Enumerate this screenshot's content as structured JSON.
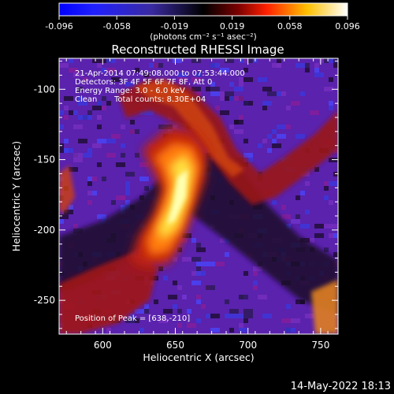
{
  "colorbar": {
    "tick_labels": [
      "-0.096",
      "-0.058",
      "-0.019",
      "0.019",
      "0.058",
      "0.096"
    ],
    "range": [
      -0.096,
      0.096
    ],
    "unit_label": "(photons cm⁻² s⁻¹ asec⁻²)"
  },
  "info": {
    "line1": "21-Apr-2014 07:49:08.000 to 07:53:44.000",
    "line2": "Detectors: 3F 4F 5F 6F 7F 8F, Att 0",
    "line3": "Energy Range: 3.0 - 6.0 keV",
    "line4_a": "Clean",
    "line4_b": "Total counts: 8.30E+04",
    "peak": "Position of Peak = [638,-210]"
  },
  "footer_date": "14-May-2022 18:13",
  "colors": {
    "background": "#000000",
    "image_base": "#6a28b8",
    "flare_core": "#ffff80"
  },
  "chart_data": {
    "type": "heatmap",
    "title": "Reconstructed RHESSI Image",
    "xlabel": "Heliocentric X (arcsec)",
    "ylabel": "Heliocentric Y (arcsec)",
    "xlim": [
      570,
      762
    ],
    "ylim": [
      -274,
      -78
    ],
    "xticks": [
      600,
      650,
      700,
      750
    ],
    "yticks": [
      -100,
      -150,
      -200,
      -250
    ],
    "colormap": "blue-black-red-yellow-white",
    "peak_position": [
      638,
      -210
    ]
  }
}
